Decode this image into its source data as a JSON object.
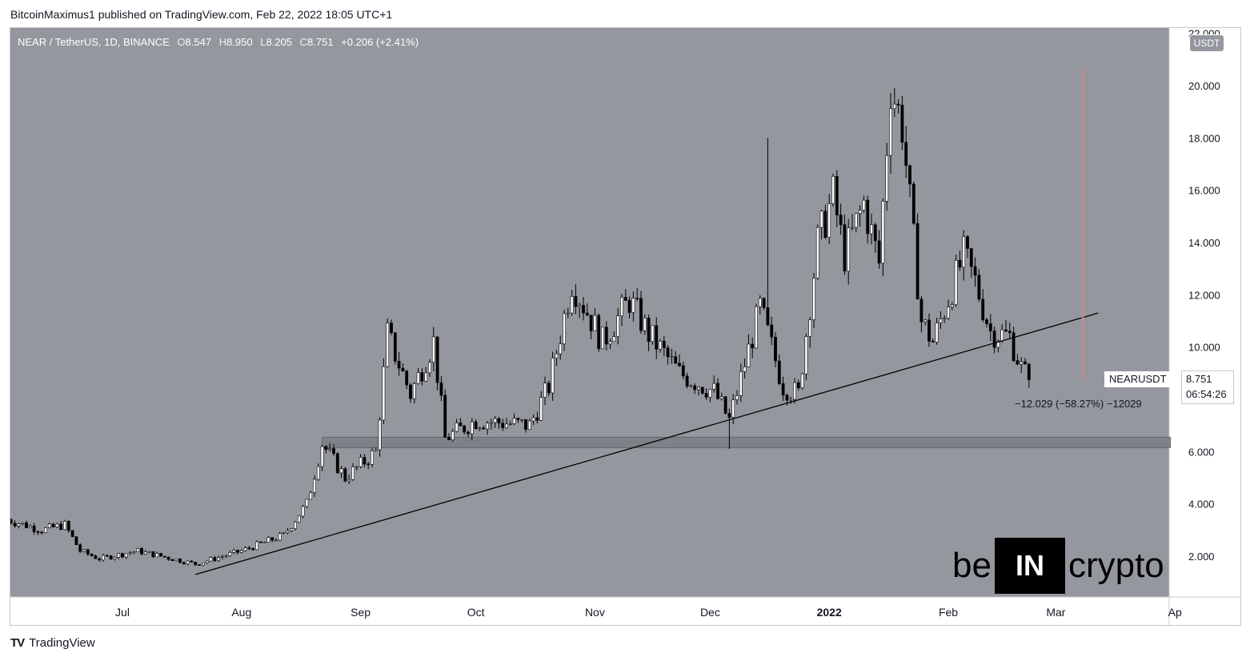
{
  "header": {
    "published": "BitcoinMaximus1 published on TradingView.com, Feb 22, 2022 18:05 UTC+1"
  },
  "legend": {
    "pair": "NEAR / TetherUS, 1D, BINANCE",
    "o_key": "O",
    "o": "8.547",
    "h_key": "H",
    "h": "8.950",
    "l_key": "L",
    "l": "8.205",
    "c_key": "C",
    "c": "8.751",
    "change": "+0.206 (+2.41%)"
  },
  "unit": "USDT",
  "symbol_label": "NEARUSDT",
  "last_price": "8.751",
  "countdown": "06:54:26",
  "measure_text": "−12.029 (−58.27%) −12029",
  "brand": {
    "left": "be",
    "box": "IN",
    "right": "crypto"
  },
  "footer": {
    "logo": "TV",
    "name": "TradingView"
  },
  "colors": {
    "plot_bg": "#95979f",
    "candle": "#ffffff",
    "candle_down": "#000000",
    "trendline": "#000000",
    "support_zone": "#7d7f86",
    "measure_line": "#c98a8a"
  },
  "chart_data": {
    "type": "candlestick",
    "ylim": [
      0,
      22
    ],
    "yticks": [
      {
        "v": 22,
        "label": "22.000"
      },
      {
        "v": 20,
        "label": "20.000"
      },
      {
        "v": 18,
        "label": "18.000"
      },
      {
        "v": 16,
        "label": "16.000"
      },
      {
        "v": 14,
        "label": "14.000"
      },
      {
        "v": 12,
        "label": "12.000"
      },
      {
        "v": 10,
        "label": "10.000"
      },
      {
        "v": 8,
        "label": "8.000"
      },
      {
        "v": 6,
        "label": "6.000"
      },
      {
        "v": 4,
        "label": "4.000"
      },
      {
        "v": 2,
        "label": "2.000"
      }
    ],
    "xticks": [
      {
        "date": "2021-07-01",
        "label": "Jul"
      },
      {
        "date": "2021-08-01",
        "label": "Aug"
      },
      {
        "date": "2021-09-01",
        "label": "Sep"
      },
      {
        "date": "2021-10-01",
        "label": "Oct"
      },
      {
        "date": "2021-11-01",
        "label": "Nov"
      },
      {
        "date": "2021-12-01",
        "label": "Dec"
      },
      {
        "date": "2022-01-01",
        "label": "2022"
      },
      {
        "date": "2022-02-01",
        "label": "Feb"
      },
      {
        "date": "2022-03-01",
        "label": "Mar"
      },
      {
        "date": "2022-04-01",
        "label": "Ap"
      }
    ],
    "anchors": [
      {
        "date": "2021-06-01",
        "close": 3.4
      },
      {
        "date": "2021-06-10",
        "close": 3.0
      },
      {
        "date": "2021-06-16",
        "close": 3.2
      },
      {
        "date": "2021-06-20",
        "close": 2.2
      },
      {
        "date": "2021-06-25",
        "close": 1.9
      },
      {
        "date": "2021-07-05",
        "close": 2.2
      },
      {
        "date": "2021-07-20",
        "close": 1.7
      },
      {
        "date": "2021-08-01",
        "close": 2.2
      },
      {
        "date": "2021-08-12",
        "close": 2.8
      },
      {
        "date": "2021-08-18",
        "close": 4.0
      },
      {
        "date": "2021-08-22",
        "close": 6.3
      },
      {
        "date": "2021-08-28",
        "close": 5.0
      },
      {
        "date": "2021-09-05",
        "close": 6.0
      },
      {
        "date": "2021-09-08",
        "close": 10.5
      },
      {
        "date": "2021-09-14",
        "close": 8.2
      },
      {
        "date": "2021-09-20",
        "close": 10.2
      },
      {
        "date": "2021-09-23",
        "close": 6.5
      },
      {
        "date": "2021-10-01",
        "close": 7.2
      },
      {
        "date": "2021-10-15",
        "close": 7.0
      },
      {
        "date": "2021-10-20",
        "close": 8.5
      },
      {
        "date": "2021-10-26",
        "close": 12.5
      },
      {
        "date": "2021-11-03",
        "close": 10.2
      },
      {
        "date": "2021-11-10",
        "close": 11.8
      },
      {
        "date": "2021-11-15",
        "close": 10.5
      },
      {
        "date": "2021-11-23",
        "close": 9.0
      },
      {
        "date": "2021-12-02",
        "close": 8.3
      },
      {
        "date": "2021-12-06",
        "close": 7.2
      },
      {
        "date": "2021-12-14",
        "close": 11.5
      },
      {
        "date": "2021-12-20",
        "close": 8.5
      },
      {
        "date": "2021-12-24",
        "close": 8.2
      },
      {
        "date": "2021-12-29",
        "close": 14.0
      },
      {
        "date": "2022-01-02",
        "close": 15.8
      },
      {
        "date": "2022-01-05",
        "close": 13.5
      },
      {
        "date": "2022-01-10",
        "close": 15.5
      },
      {
        "date": "2022-01-14",
        "close": 13.2
      },
      {
        "date": "2022-01-17",
        "close": 20.0
      },
      {
        "date": "2022-01-20",
        "close": 18.5
      },
      {
        "date": "2022-01-25",
        "close": 11.0
      },
      {
        "date": "2022-01-28",
        "close": 10.2
      },
      {
        "date": "2022-02-05",
        "close": 13.5
      },
      {
        "date": "2022-02-08",
        "close": 12.5
      },
      {
        "date": "2022-02-12",
        "close": 10.6
      },
      {
        "date": "2022-02-17",
        "close": 10.4
      },
      {
        "date": "2022-02-20",
        "close": 9.2
      },
      {
        "date": "2022-02-22",
        "close": 8.751
      }
    ],
    "spikes": [
      {
        "date": "2021-12-16",
        "high": 18.0
      },
      {
        "date": "2021-12-06",
        "low": 6.1
      }
    ],
    "trendline": {
      "start_date": "2021-07-20",
      "start_value": 1.3,
      "end_date": "2022-03-12",
      "end_value": 11.3
    },
    "support_zone": {
      "start_date": "2021-08-22",
      "end_date": "2022-03-31",
      "low": 6.15,
      "high": 6.55
    },
    "measure": {
      "date": "2022-03-08",
      "from": 20.7,
      "to": 8.7
    }
  }
}
